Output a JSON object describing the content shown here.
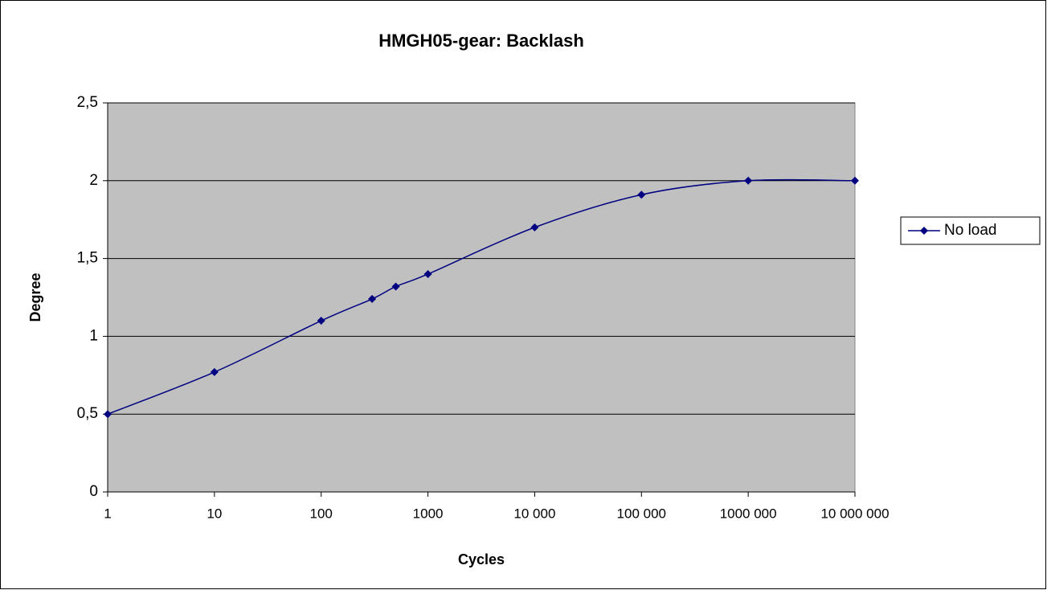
{
  "chart_data": {
    "type": "line",
    "title": "HMGH05-gear:  Backlash",
    "xlabel": "Cycles",
    "ylabel": "Degree",
    "xscale": "log",
    "x": [
      1,
      10,
      100,
      300,
      500,
      1000,
      10000,
      100000,
      1000000,
      10000000
    ],
    "series": [
      {
        "name": "No load",
        "color": "#000080",
        "values": [
          0.5,
          0.77,
          1.1,
          1.24,
          1.32,
          1.4,
          1.7,
          1.91,
          2.0,
          2.0
        ]
      }
    ],
    "xlim": [
      1,
      10000000
    ],
    "xticks": [
      1,
      10,
      100,
      1000,
      {
        "value": 10000,
        "label": "10 000"
      },
      {
        "value": 100000,
        "label": "100 000"
      },
      {
        "value": 1000000,
        "label": "1000 000"
      },
      {
        "value": 10000000,
        "label": "10 000 000"
      }
    ],
    "ylim": [
      0,
      2.5
    ],
    "yticks": [
      0,
      {
        "value": 0.5,
        "label": "0,5"
      },
      1,
      {
        "value": 1.5,
        "label": "1,5"
      },
      2,
      {
        "value": 2.5,
        "label": "2,5"
      }
    ],
    "grid": true,
    "legend": "right",
    "plot_background": "#c0c0c0"
  }
}
